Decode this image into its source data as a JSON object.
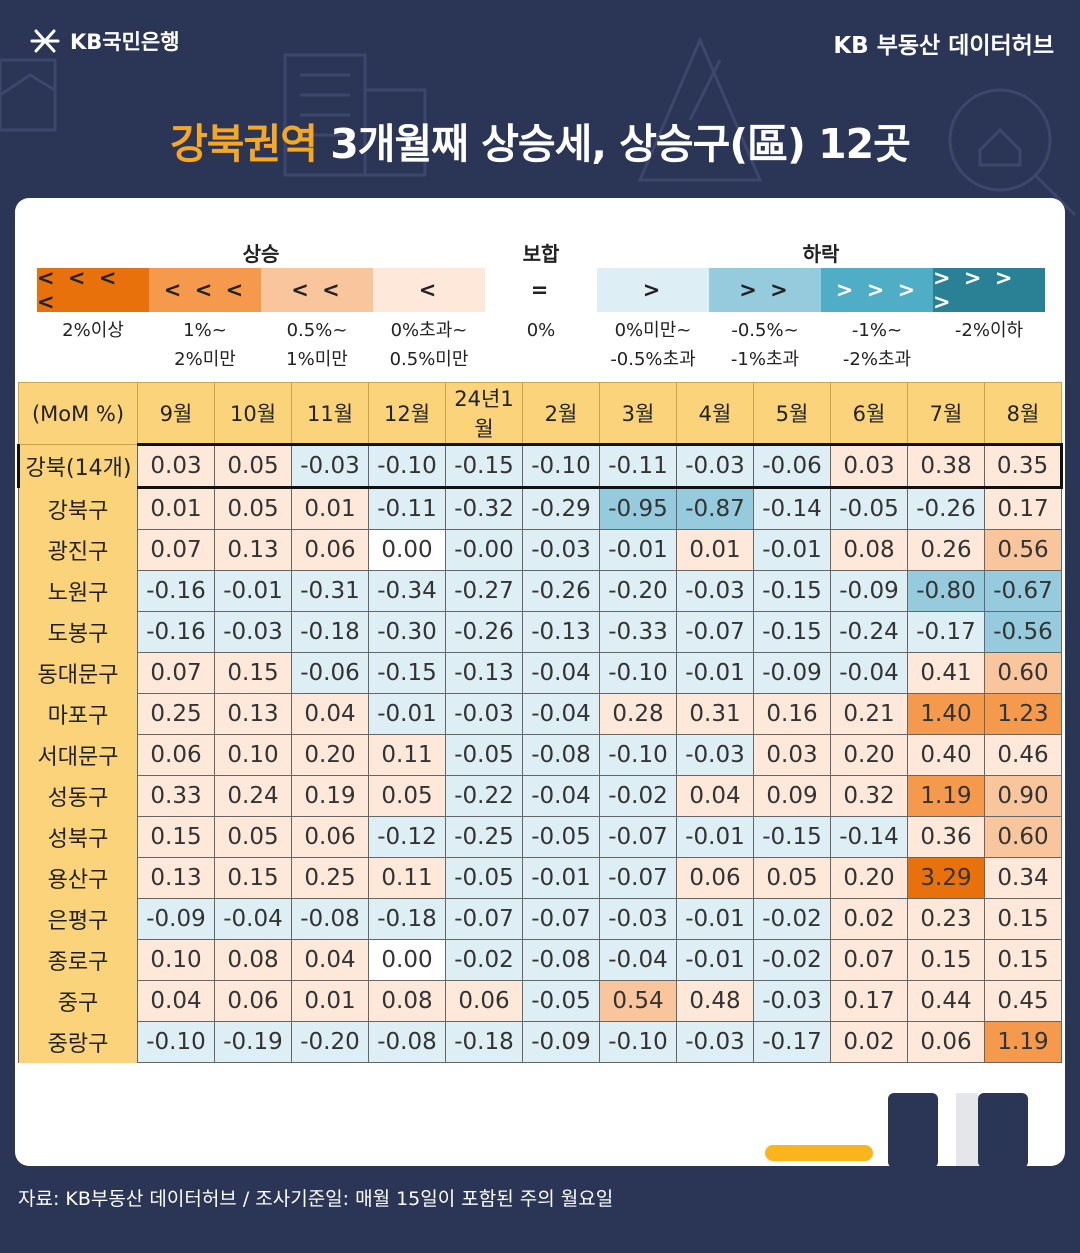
{
  "header": {
    "brand_left": "KB국민은행",
    "brand_right": "KB 부동산  데이터허브",
    "title_highlight": "강북권역",
    "title_rest": " 3개월째 상승세, 상승구(區) 12곳"
  },
  "legend": {
    "groups": {
      "rise": "상승",
      "flat": "보합",
      "fall": "하락"
    },
    "items": [
      {
        "symbol": "< < < <",
        "desc": [
          "2%이상"
        ],
        "color": "#e8710c"
      },
      {
        "symbol": "< < <",
        "desc": [
          "1%~",
          "2%미만"
        ],
        "color": "#f59a4d"
      },
      {
        "symbol": "< <",
        "desc": [
          "0.5%~",
          "1%미만"
        ],
        "color": "#f8c59d"
      },
      {
        "symbol": "<",
        "desc": [
          "0%초과~",
          "0.5%미만"
        ],
        "color": "#fde8da"
      },
      {
        "symbol": "=",
        "desc": [
          "0%"
        ],
        "color": "#ffffff"
      },
      {
        "symbol": ">",
        "desc": [
          "0%미만~",
          "-0.5%초과"
        ],
        "color": "#ddeef4"
      },
      {
        "symbol": "> >",
        "desc": [
          "-0.5%~",
          "-1%초과"
        ],
        "color": "#95cbdc"
      },
      {
        "symbol": "> > >",
        "desc": [
          "-1%~",
          "-2%초과"
        ],
        "color": "#4faec6"
      },
      {
        "symbol": "> > > >",
        "desc": [
          "-2%이하"
        ],
        "color": "#2a8196"
      }
    ]
  },
  "chart_data": {
    "type": "heatmap",
    "corner_label": "(MoM %)",
    "columns": [
      "9월",
      "10월",
      "11월",
      "12월",
      "24년1월",
      "2월",
      "3월",
      "4월",
      "5월",
      "6월",
      "7월",
      "8월"
    ],
    "rows": [
      {
        "name": "강북(14개)",
        "values": [
          "0.03",
          "0.05",
          "-0.03",
          "-0.10",
          "-0.15",
          "-0.10",
          "-0.11",
          "-0.03",
          "-0.06",
          "0.03",
          "0.38",
          "0.35"
        ]
      },
      {
        "name": "강북구",
        "values": [
          "0.01",
          "0.05",
          "0.01",
          "-0.11",
          "-0.32",
          "-0.29",
          "-0.95",
          "-0.87",
          "-0.14",
          "-0.05",
          "-0.26",
          "0.17"
        ]
      },
      {
        "name": "광진구",
        "values": [
          "0.07",
          "0.13",
          "0.06",
          "0.00",
          "-0.00",
          "-0.03",
          "-0.01",
          "0.01",
          "-0.01",
          "0.08",
          "0.26",
          "0.56"
        ]
      },
      {
        "name": "노원구",
        "values": [
          "-0.16",
          "-0.01",
          "-0.31",
          "-0.34",
          "-0.27",
          "-0.26",
          "-0.20",
          "-0.03",
          "-0.15",
          "-0.09",
          "-0.80",
          "-0.67"
        ]
      },
      {
        "name": "도봉구",
        "values": [
          "-0.16",
          "-0.03",
          "-0.18",
          "-0.30",
          "-0.26",
          "-0.13",
          "-0.33",
          "-0.07",
          "-0.15",
          "-0.24",
          "-0.17",
          "-0.56"
        ]
      },
      {
        "name": "동대문구",
        "values": [
          "0.07",
          "0.15",
          "-0.06",
          "-0.15",
          "-0.13",
          "-0.04",
          "-0.10",
          "-0.01",
          "-0.09",
          "-0.04",
          "0.41",
          "0.60"
        ]
      },
      {
        "name": "마포구",
        "values": [
          "0.25",
          "0.13",
          "0.04",
          "-0.01",
          "-0.03",
          "-0.04",
          "0.28",
          "0.31",
          "0.16",
          "0.21",
          "1.40",
          "1.23"
        ]
      },
      {
        "name": "서대문구",
        "values": [
          "0.06",
          "0.10",
          "0.20",
          "0.11",
          "-0.05",
          "-0.08",
          "-0.10",
          "-0.03",
          "0.03",
          "0.20",
          "0.40",
          "0.46"
        ]
      },
      {
        "name": "성동구",
        "values": [
          "0.33",
          "0.24",
          "0.19",
          "0.05",
          "-0.22",
          "-0.04",
          "-0.02",
          "0.04",
          "0.09",
          "0.32",
          "1.19",
          "0.90"
        ]
      },
      {
        "name": "성북구",
        "values": [
          "0.15",
          "0.05",
          "0.06",
          "-0.12",
          "-0.25",
          "-0.05",
          "-0.07",
          "-0.01",
          "-0.15",
          "-0.14",
          "0.36",
          "0.60"
        ]
      },
      {
        "name": "용산구",
        "values": [
          "0.13",
          "0.15",
          "0.25",
          "0.11",
          "-0.05",
          "-0.01",
          "-0.07",
          "0.06",
          "0.05",
          "0.20",
          "3.29",
          "0.34"
        ]
      },
      {
        "name": "은평구",
        "values": [
          "-0.09",
          "-0.04",
          "-0.08",
          "-0.18",
          "-0.07",
          "-0.07",
          "-0.03",
          "-0.01",
          "-0.02",
          "0.02",
          "0.23",
          "0.15"
        ]
      },
      {
        "name": "종로구",
        "values": [
          "0.10",
          "0.08",
          "0.04",
          "0.00",
          "-0.02",
          "-0.08",
          "-0.04",
          "-0.01",
          "-0.02",
          "0.07",
          "0.15",
          "0.15"
        ]
      },
      {
        "name": "중구",
        "values": [
          "0.04",
          "0.06",
          "0.01",
          "0.08",
          "0.06",
          "-0.05",
          "0.54",
          "0.48",
          "-0.03",
          "0.17",
          "0.44",
          "0.45"
        ]
      },
      {
        "name": "중랑구",
        "values": [
          "-0.10",
          "-0.19",
          "-0.20",
          "-0.08",
          "-0.18",
          "-0.09",
          "-0.10",
          "-0.03",
          "-0.17",
          "0.02",
          "0.06",
          "1.19"
        ]
      }
    ]
  },
  "footer": {
    "source": "자료: KB부동산 데이터허브 / 조사기준일: 매월 15일이 포함된 주의 월요일"
  }
}
